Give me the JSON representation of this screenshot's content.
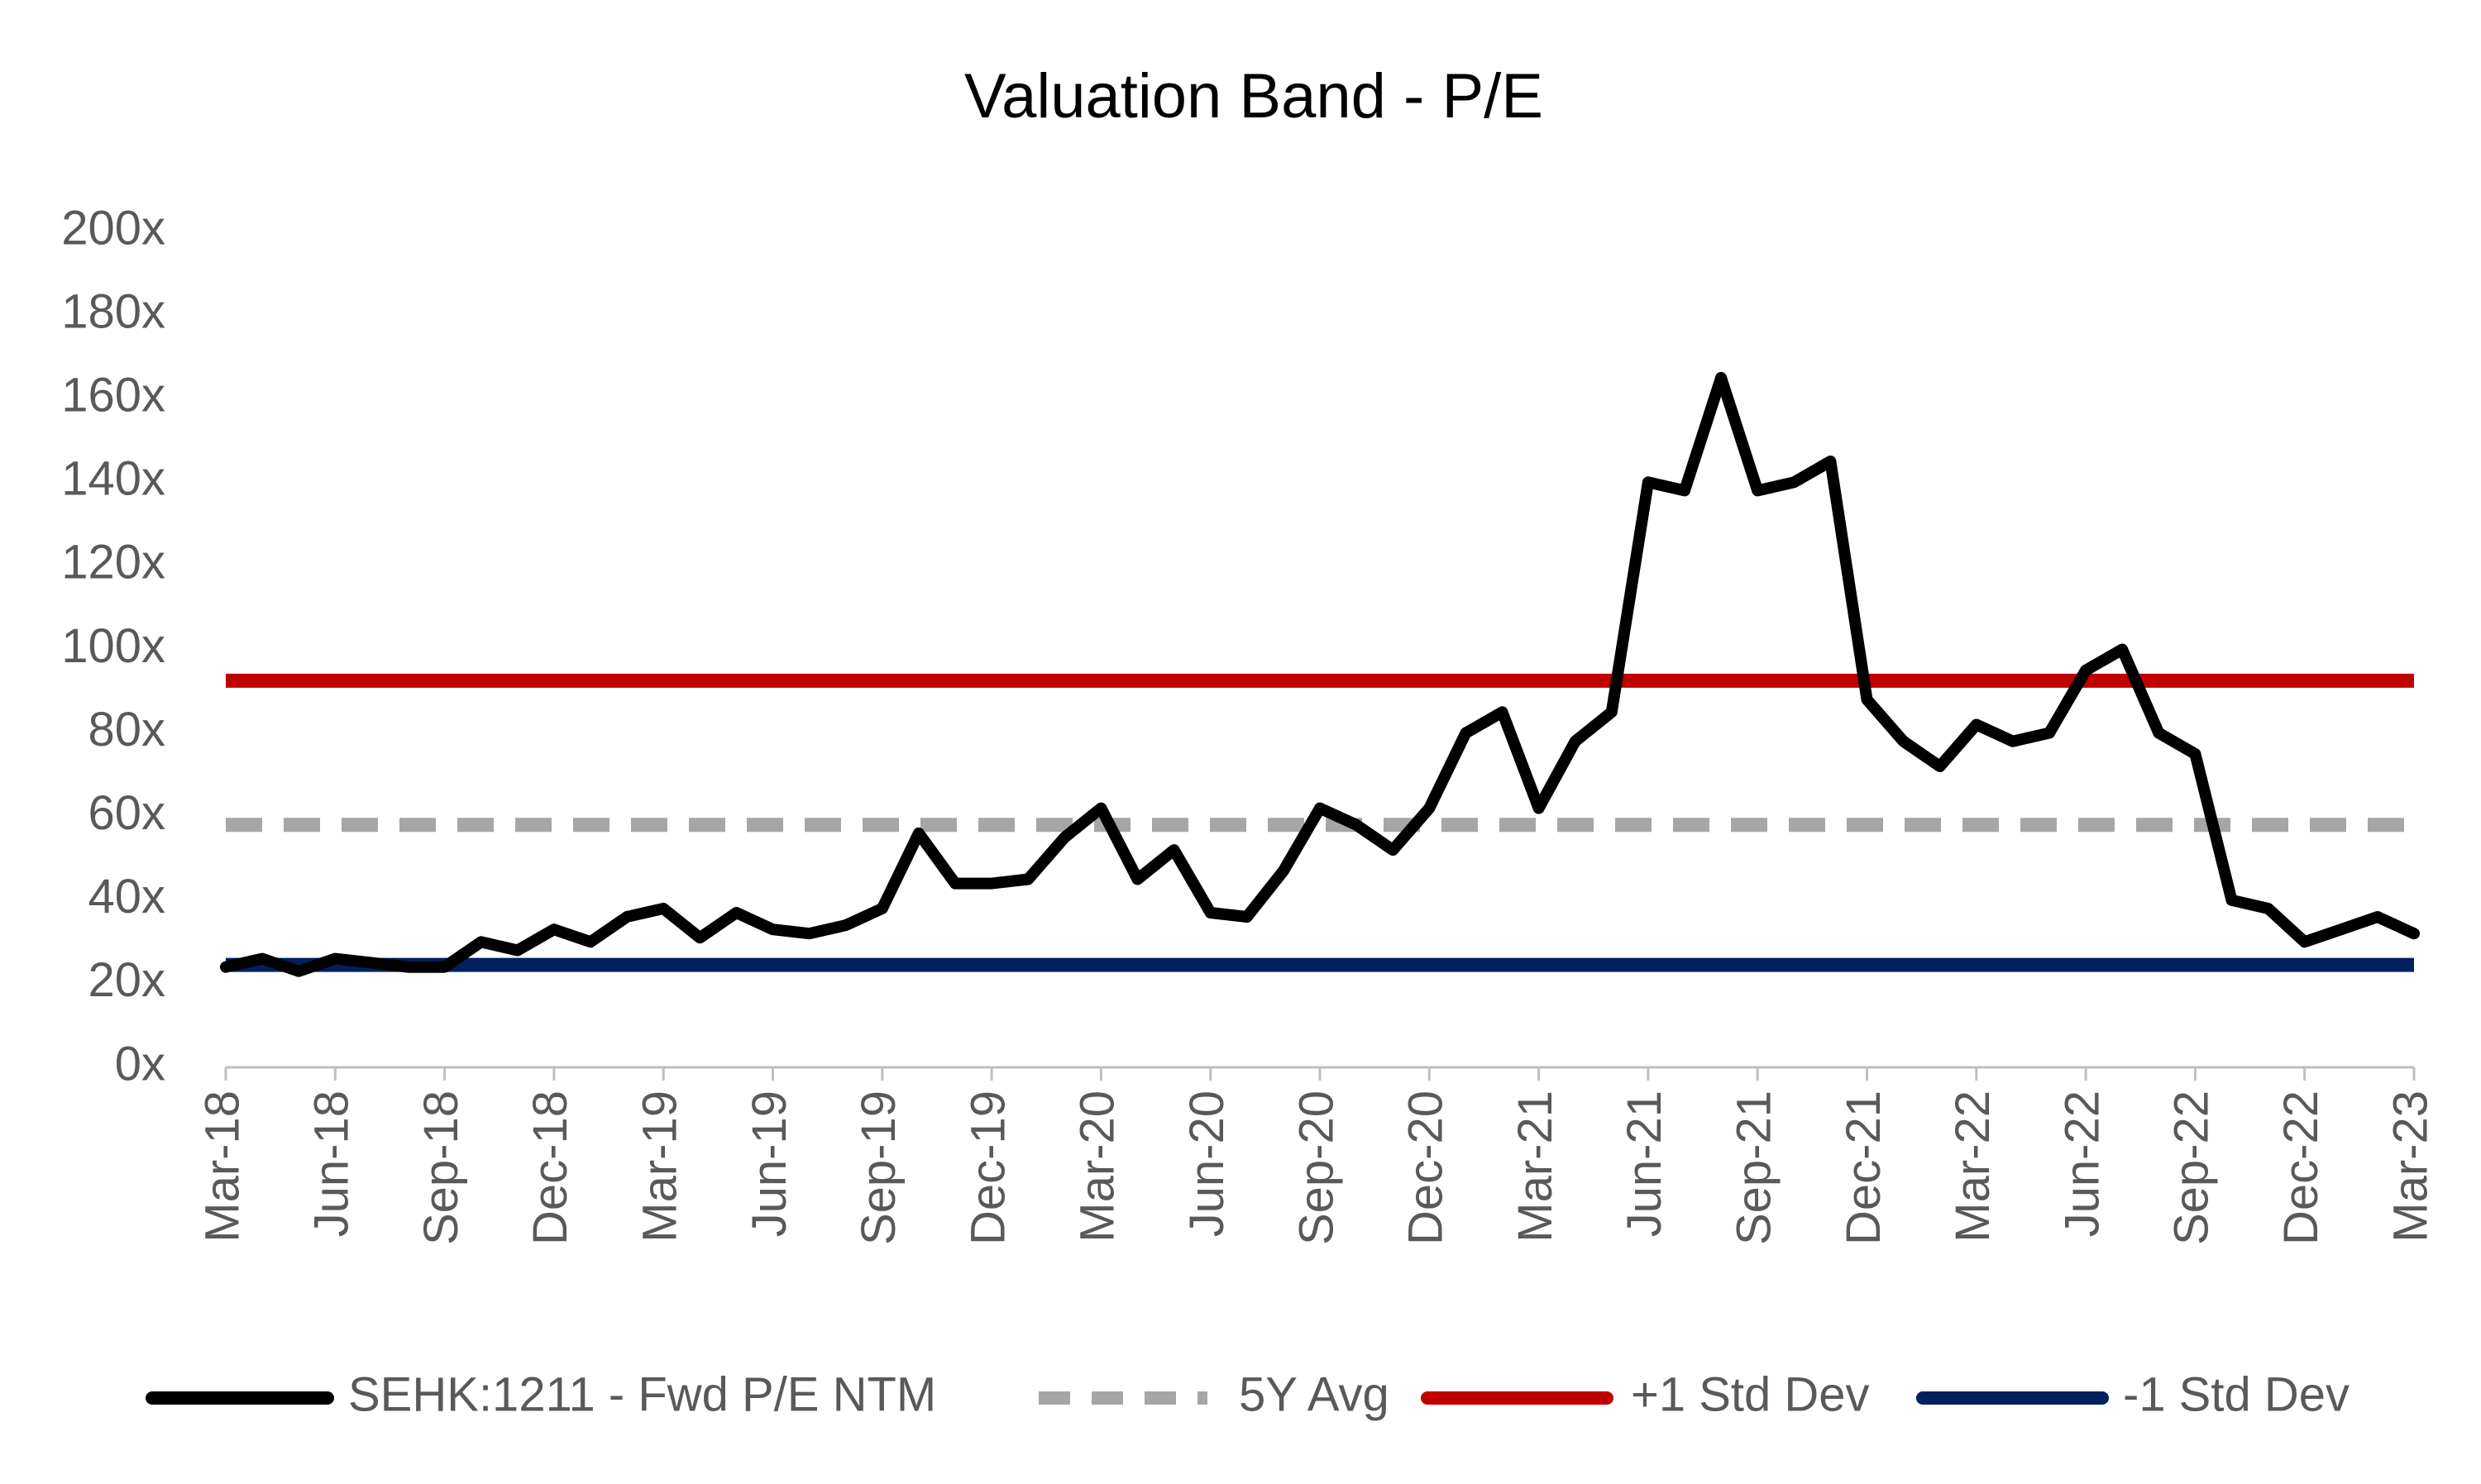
{
  "chart_data": {
    "type": "line",
    "title": "Valuation Band - P/E",
    "categories": [
      "Mar-18",
      null,
      null,
      "Jun-18",
      null,
      null,
      "Sep-18",
      null,
      null,
      "Dec-18",
      null,
      null,
      "Mar-19",
      null,
      null,
      "Jun-19",
      null,
      null,
      "Sep-19",
      null,
      null,
      "Dec-19",
      null,
      null,
      "Mar-20",
      null,
      null,
      "Jun-20",
      null,
      null,
      "Sep-20",
      null,
      null,
      "Dec-20",
      null,
      null,
      "Mar-21",
      null,
      null,
      "Jun-21",
      null,
      null,
      "Sep-21",
      null,
      null,
      "Dec-21",
      null,
      null,
      "Mar-22",
      null,
      null,
      "Jun-22",
      null,
      null,
      "Sep-22",
      null,
      null,
      "Dec-22",
      null,
      null,
      "Mar-23"
    ],
    "series": [
      {
        "name": "SEHK:1211 - Fwd P/E NTM",
        "color": "#000000",
        "values": [
          24,
          26,
          23,
          26,
          25,
          24,
          24,
          30,
          28,
          33,
          30,
          36,
          38,
          31,
          37,
          33,
          32,
          34,
          38,
          56,
          44,
          44,
          45,
          55,
          62,
          45,
          52,
          37,
          36,
          47,
          62,
          58,
          52,
          62,
          80,
          85,
          62,
          78,
          85,
          140,
          138,
          165,
          138,
          140,
          145,
          88,
          78,
          72,
          82,
          78,
          80,
          95,
          100,
          80,
          75,
          40,
          38,
          30,
          33,
          36,
          32
        ]
      }
    ],
    "reference_lines": [
      {
        "name": "5Y Avg",
        "color": "#a6a6a6",
        "dashed": true,
        "value": 58
      },
      {
        "name": "+1 Std Dev",
        "color": "#c00000",
        "dashed": false,
        "value": 92.5
      },
      {
        "name": "-1 Std Dev",
        "color": "#002060",
        "dashed": false,
        "value": 24.5
      }
    ],
    "ylim": [
      0,
      200
    ],
    "yticks": [
      {
        "value": 0,
        "label": "0x"
      },
      {
        "value": 20,
        "label": "20x"
      },
      {
        "value": 40,
        "label": "40x"
      },
      {
        "value": 60,
        "label": "60x"
      },
      {
        "value": 80,
        "label": "80x"
      },
      {
        "value": 100,
        "label": "100x"
      },
      {
        "value": 120,
        "label": "120x"
      },
      {
        "value": 140,
        "label": "140x"
      },
      {
        "value": 160,
        "label": "160x"
      },
      {
        "value": 180,
        "label": "180x"
      },
      {
        "value": 200,
        "label": "200x"
      }
    ],
    "grid": false,
    "legend": "bottom"
  }
}
